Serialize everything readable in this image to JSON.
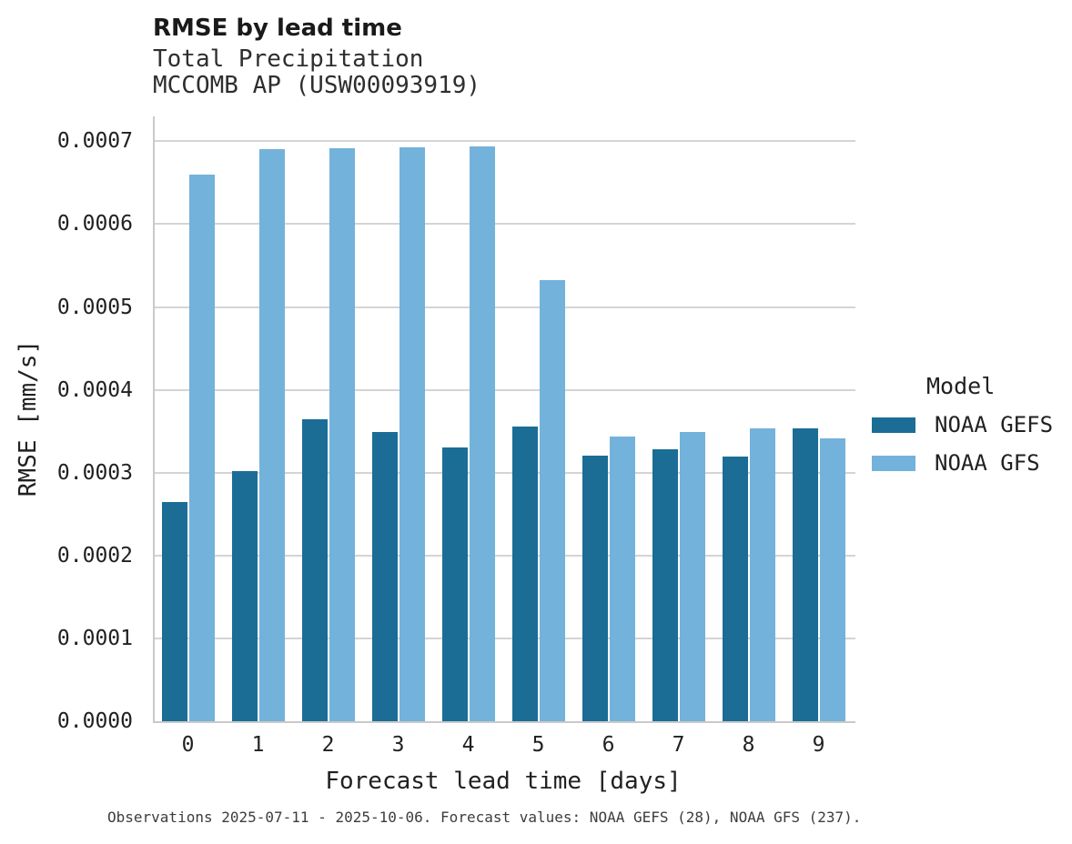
{
  "chart_data": {
    "type": "bar",
    "title": "RMSE by lead time",
    "subtitle_lines": [
      "Total Precipitation",
      "MCCOMB AP (USW00093919)"
    ],
    "xlabel": "Forecast lead time [days]",
    "ylabel": "RMSE [mm/s]",
    "categories": [
      "0",
      "1",
      "2",
      "3",
      "4",
      "5",
      "6",
      "7",
      "8",
      "9"
    ],
    "series": [
      {
        "name": "NOAA GEFS",
        "color": "#1b6d96",
        "values": [
          0.000265,
          0.000302,
          0.000365,
          0.000349,
          0.00033,
          0.000356,
          0.000321,
          0.000328,
          0.00032,
          0.000353
        ]
      },
      {
        "name": "NOAA GFS",
        "color": "#73b2da",
        "values": [
          0.00066,
          0.00069,
          0.000692,
          0.000693,
          0.000694,
          0.000533,
          0.000344,
          0.000349,
          0.000353,
          0.000341
        ]
      }
    ],
    "ylim": [
      0,
      0.00073
    ],
    "yticks": [
      0.0,
      0.0001,
      0.0002,
      0.0003,
      0.0004,
      0.0005,
      0.0006,
      0.0007
    ],
    "ytick_labels": [
      "0.0000",
      "0.0001",
      "0.0002",
      "0.0003",
      "0.0004",
      "0.0005",
      "0.0006",
      "0.0007"
    ],
    "grid": "horizontal-only",
    "legend": {
      "title": "Model",
      "position": "center-right"
    }
  },
  "colors": {
    "gridline": "#d4d4d4",
    "spine": "#c9c9c9",
    "background": "#ffffff"
  },
  "footer": {
    "caption": "Observations 2025-07-11 - 2025-10-06. Forecast values: NOAA GEFS (28), NOAA GFS (237)."
  }
}
